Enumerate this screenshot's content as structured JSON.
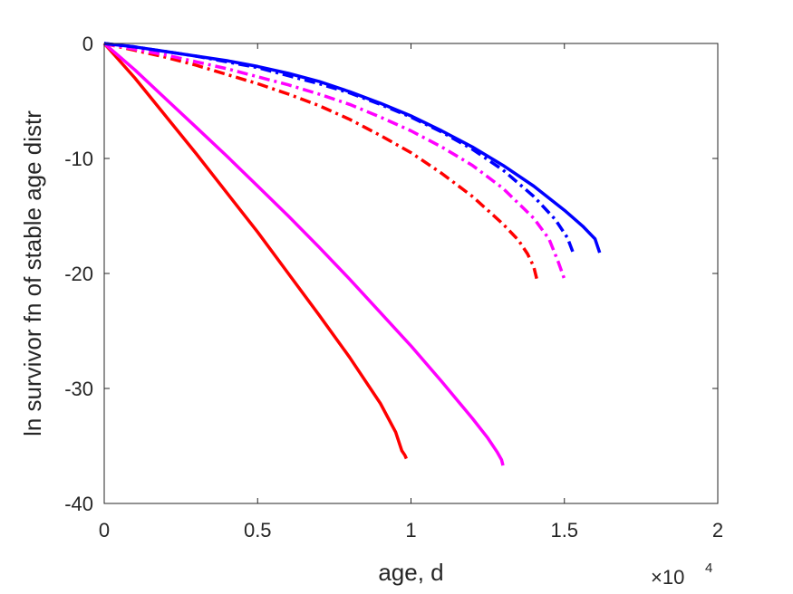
{
  "chart_data": {
    "type": "line",
    "title": "",
    "xlabel": "age, d",
    "ylabel": "ln survivor fn of stable age distr",
    "x_exponent_label": {
      "base": "×10",
      "exponent": "4"
    },
    "xlim": [
      0,
      20000
    ],
    "ylim": [
      -40,
      0
    ],
    "x_ticks": [
      0,
      5000,
      10000,
      15000,
      20000
    ],
    "x_tick_labels": [
      "0",
      "0.5",
      "1",
      "1.5",
      "2"
    ],
    "y_ticks": [
      0,
      -10,
      -20,
      -30,
      -40
    ],
    "y_tick_labels": [
      "0",
      "-10",
      "-20",
      "-30",
      "-40"
    ],
    "grid": false,
    "series": [
      {
        "color": "#ff0000",
        "style": "solid",
        "x": [
          0,
          1000,
          2000,
          3000,
          4000,
          5000,
          6000,
          7000,
          8000,
          9000,
          9500,
          9700,
          9800,
          9850
        ],
        "y": [
          0,
          -3.0,
          -6.3,
          -9.6,
          -13.0,
          -16.4,
          -20.0,
          -23.6,
          -27.3,
          -31.3,
          -33.8,
          -35.4,
          -35.8,
          -36.1
        ]
      },
      {
        "color": "#ff00ff",
        "style": "solid",
        "x": [
          0,
          1000,
          2000,
          3000,
          4000,
          5000,
          6000,
          7000,
          8000,
          9000,
          10000,
          11000,
          12000,
          12500,
          12800,
          12950,
          13000
        ],
        "y": [
          0,
          -2.3,
          -4.8,
          -7.3,
          -9.8,
          -12.4,
          -15.0,
          -17.7,
          -20.5,
          -23.4,
          -26.3,
          -29.4,
          -32.6,
          -34.3,
          -35.5,
          -36.2,
          -36.7
        ]
      },
      {
        "color": "#ff0000",
        "style": "dashdot",
        "x": [
          0,
          1000,
          2000,
          3000,
          4000,
          5000,
          6000,
          7000,
          8000,
          9000,
          10000,
          11000,
          12000,
          13000,
          13500,
          13800,
          14000,
          14100
        ],
        "y": [
          0,
          -0.6,
          -1.2,
          -1.9,
          -2.7,
          -3.5,
          -4.4,
          -5.4,
          -6.6,
          -8.0,
          -9.5,
          -11.3,
          -13.3,
          -15.7,
          -17.1,
          -18.3,
          -19.4,
          -20.5
        ]
      },
      {
        "color": "#ff00ff",
        "style": "dashdot",
        "x": [
          0,
          1000,
          2000,
          3000,
          4000,
          5000,
          6000,
          7000,
          8000,
          9000,
          10000,
          11000,
          12000,
          13000,
          14000,
          14500,
          14800,
          15000
        ],
        "y": [
          0,
          -0.5,
          -1.0,
          -1.6,
          -2.2,
          -2.9,
          -3.6,
          -4.4,
          -5.3,
          -6.4,
          -7.6,
          -9.0,
          -10.6,
          -12.6,
          -15.2,
          -17.0,
          -19.0,
          -20.5
        ]
      },
      {
        "color": "#0000ff",
        "style": "dashdot",
        "x": [
          0,
          1000,
          2000,
          3000,
          4000,
          5000,
          6000,
          7000,
          8000,
          9000,
          10000,
          11000,
          12000,
          13000,
          14000,
          14700,
          15100,
          15300
        ],
        "y": [
          0,
          -0.3,
          -0.7,
          -1.1,
          -1.6,
          -2.1,
          -2.8,
          -3.5,
          -4.3,
          -5.3,
          -6.4,
          -7.7,
          -9.2,
          -11.0,
          -13.3,
          -15.3,
          -16.9,
          -18.3
        ]
      },
      {
        "color": "#0000ff",
        "style": "solid",
        "x": [
          0,
          1000,
          2000,
          3000,
          4000,
          5000,
          6000,
          7000,
          8000,
          9000,
          10000,
          11000,
          12000,
          13000,
          14000,
          15000,
          15600,
          16000,
          16150
        ],
        "y": [
          0,
          -0.3,
          -0.7,
          -1.1,
          -1.5,
          -2.0,
          -2.6,
          -3.3,
          -4.2,
          -5.2,
          -6.3,
          -7.6,
          -9.0,
          -10.6,
          -12.4,
          -14.5,
          -15.9,
          -17.0,
          -18.2
        ]
      }
    ]
  }
}
